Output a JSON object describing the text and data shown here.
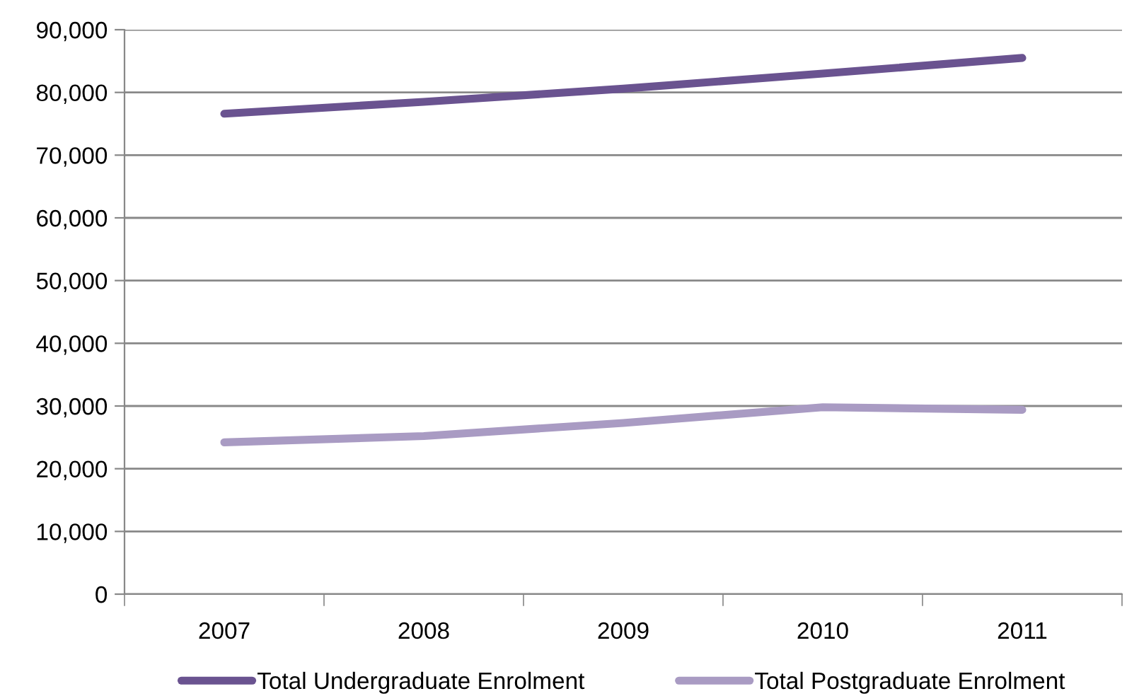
{
  "chart_data": {
    "type": "line",
    "categories": [
      "2007",
      "2008",
      "2009",
      "2010",
      "2011"
    ],
    "series": [
      {
        "name": "Total Undergraduate Enrolment",
        "color": "#6a5390",
        "values": [
          76600,
          78500,
          80600,
          83000,
          85500
        ]
      },
      {
        "name": "Total Postgraduate Enrolment",
        "color": "#a99bc3",
        "values": [
          24200,
          25200,
          27300,
          29800,
          29400
        ]
      }
    ],
    "ylim": [
      0,
      90000
    ],
    "yticks": [
      {
        "value": 0,
        "label": "0"
      },
      {
        "value": 10000,
        "label": "10,000"
      },
      {
        "value": 20000,
        "label": "20,000"
      },
      {
        "value": 30000,
        "label": "30,000"
      },
      {
        "value": 40000,
        "label": "40,000"
      },
      {
        "value": 50000,
        "label": "50,000"
      },
      {
        "value": 60000,
        "label": "60,000"
      },
      {
        "value": 70000,
        "label": "70,000"
      },
      {
        "value": 80000,
        "label": "80,000"
      },
      {
        "value": 90000,
        "label": "90,000"
      }
    ],
    "grid": "y",
    "legend": "bottom",
    "marker": "none",
    "line_style": "solid"
  }
}
